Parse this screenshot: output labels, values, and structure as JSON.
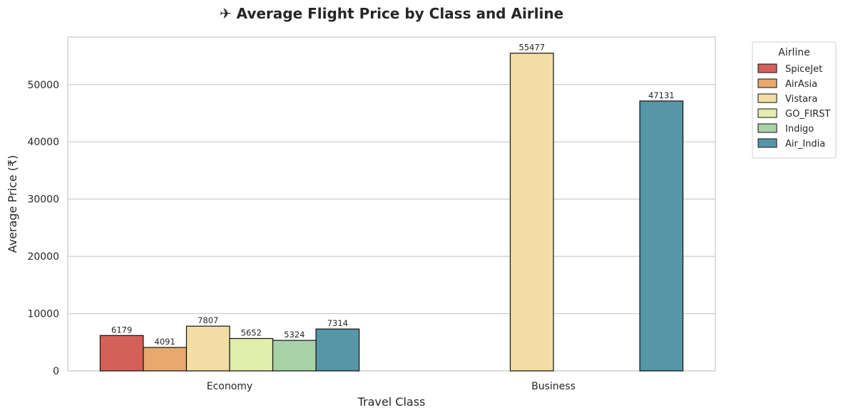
{
  "title": "✈ Average Flight Price by Class and Airline",
  "chart_data": {
    "type": "bar",
    "title": "✈ Average Flight Price by Class and Airline",
    "xlabel": "Travel Class",
    "ylabel": "Average Price (₹)",
    "categories": [
      "Economy",
      "Business"
    ],
    "ylim": [
      0,
      58300
    ],
    "yticks": [
      0,
      10000,
      20000,
      30000,
      40000,
      50000
    ],
    "grid": true,
    "legend": {
      "title": "Airline",
      "placement": "outside-right"
    },
    "series": [
      {
        "name": "SpiceJet",
        "color": "#d4605a",
        "values": [
          6179,
          null
        ]
      },
      {
        "name": "AirAsia",
        "color": "#e9a86e",
        "values": [
          4091,
          null
        ]
      },
      {
        "name": "Vistara",
        "color": "#f2dea4",
        "values": [
          7807,
          55477
        ]
      },
      {
        "name": "GO_FIRST",
        "color": "#e2eeab",
        "values": [
          5652,
          null
        ]
      },
      {
        "name": "Indigo",
        "color": "#a8d2a7",
        "values": [
          5324,
          null
        ]
      },
      {
        "name": "Air_India",
        "color": "#5596a7",
        "values": [
          7314,
          47131
        ]
      }
    ]
  }
}
